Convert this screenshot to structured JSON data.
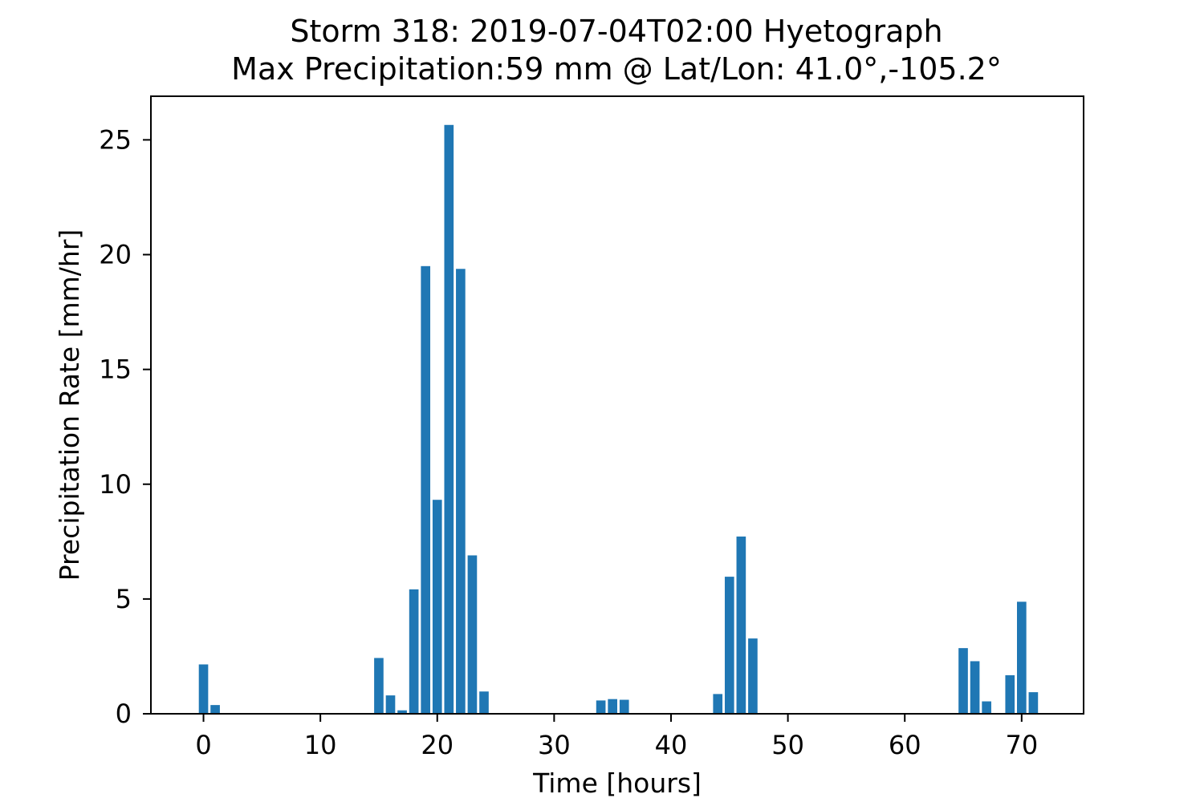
{
  "chart_data": {
    "type": "bar",
    "title_line1": "Storm 318: 2019-07-04T02:00 Hyetograph",
    "title_line2": "Max Precipitation:59 mm @ Lat/Lon:  41.0°,-105.2°",
    "xlabel": "Time [hours]",
    "ylabel": "Precipitation Rate [mm/hr]",
    "xlim": [
      -4.5,
      75.3
    ],
    "ylim": [
      0,
      26.9
    ],
    "xticks": [
      0,
      10,
      20,
      30,
      40,
      50,
      60,
      70
    ],
    "yticks": [
      0,
      5,
      10,
      15,
      20,
      25
    ],
    "grid": false,
    "legend": "none",
    "bar_color": "#1f77b4",
    "x": [
      0,
      1,
      15,
      16,
      17,
      18,
      19,
      20,
      21,
      22,
      23,
      24,
      34,
      35,
      36,
      44,
      45,
      46,
      47,
      65,
      66,
      67,
      69,
      70,
      71
    ],
    "values": [
      2.15,
      0.38,
      2.43,
      0.8,
      0.15,
      5.42,
      19.5,
      9.32,
      25.65,
      19.38,
      6.9,
      0.97,
      0.58,
      0.64,
      0.61,
      0.86,
      5.97,
      7.72,
      3.28,
      2.86,
      2.29,
      0.54,
      1.68,
      4.88,
      0.94
    ]
  }
}
